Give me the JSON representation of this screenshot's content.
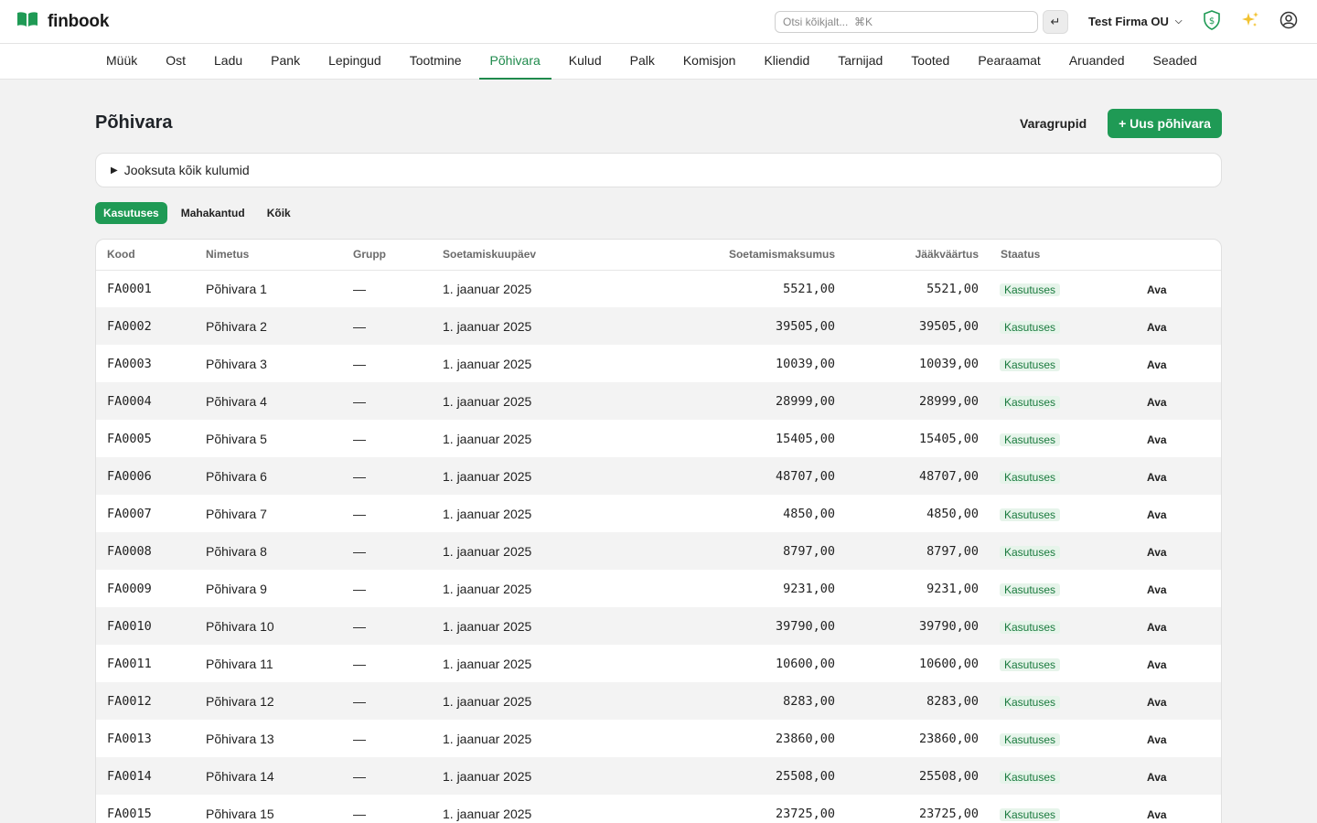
{
  "app": {
    "name": "finbook"
  },
  "search": {
    "placeholder": "Otsi kõikjalt...  ⌘K",
    "enter_glyph": "↵"
  },
  "company": {
    "name": "Test Firma OU"
  },
  "nav": {
    "items": [
      "Müük",
      "Ost",
      "Ladu",
      "Pank",
      "Lepingud",
      "Tootmine",
      "Põhivara",
      "Kulud",
      "Palk",
      "Komisjon",
      "Kliendid",
      "Tarnijad",
      "Tooted",
      "Pearaamat",
      "Aruanded",
      "Seaded"
    ],
    "active": "Põhivara"
  },
  "page": {
    "title": "Põhivara",
    "varagrupid_label": "Varagrupid",
    "new_label": "+ Uus põhivara",
    "run_all_label": "Jooksuta kõik kulumid"
  },
  "filters": {
    "items": [
      "Kasutuses",
      "Mahakantud",
      "Kõik"
    ],
    "active": "Kasutuses"
  },
  "table": {
    "headers": [
      "Kood",
      "Nimetus",
      "Grupp",
      "Soetamiskuupäev",
      "Soetamismaksumus",
      "Jääkväärtus",
      "Staatus"
    ],
    "open_label": "Ava",
    "rows": [
      {
        "code": "FA0001",
        "name": "Põhivara 1",
        "group": "—",
        "date": "1. jaanuar 2025",
        "cost": "5521,00",
        "residual": "5521,00",
        "status": "Kasutuses"
      },
      {
        "code": "FA0002",
        "name": "Põhivara 2",
        "group": "—",
        "date": "1. jaanuar 2025",
        "cost": "39505,00",
        "residual": "39505,00",
        "status": "Kasutuses"
      },
      {
        "code": "FA0003",
        "name": "Põhivara 3",
        "group": "—",
        "date": "1. jaanuar 2025",
        "cost": "10039,00",
        "residual": "10039,00",
        "status": "Kasutuses"
      },
      {
        "code": "FA0004",
        "name": "Põhivara 4",
        "group": "—",
        "date": "1. jaanuar 2025",
        "cost": "28999,00",
        "residual": "28999,00",
        "status": "Kasutuses"
      },
      {
        "code": "FA0005",
        "name": "Põhivara 5",
        "group": "—",
        "date": "1. jaanuar 2025",
        "cost": "15405,00",
        "residual": "15405,00",
        "status": "Kasutuses"
      },
      {
        "code": "FA0006",
        "name": "Põhivara 6",
        "group": "—",
        "date": "1. jaanuar 2025",
        "cost": "48707,00",
        "residual": "48707,00",
        "status": "Kasutuses"
      },
      {
        "code": "FA0007",
        "name": "Põhivara 7",
        "group": "—",
        "date": "1. jaanuar 2025",
        "cost": "4850,00",
        "residual": "4850,00",
        "status": "Kasutuses"
      },
      {
        "code": "FA0008",
        "name": "Põhivara 8",
        "group": "—",
        "date": "1. jaanuar 2025",
        "cost": "8797,00",
        "residual": "8797,00",
        "status": "Kasutuses"
      },
      {
        "code": "FA0009",
        "name": "Põhivara 9",
        "group": "—",
        "date": "1. jaanuar 2025",
        "cost": "9231,00",
        "residual": "9231,00",
        "status": "Kasutuses"
      },
      {
        "code": "FA0010",
        "name": "Põhivara 10",
        "group": "—",
        "date": "1. jaanuar 2025",
        "cost": "39790,00",
        "residual": "39790,00",
        "status": "Kasutuses"
      },
      {
        "code": "FA0011",
        "name": "Põhivara 11",
        "group": "—",
        "date": "1. jaanuar 2025",
        "cost": "10600,00",
        "residual": "10600,00",
        "status": "Kasutuses"
      },
      {
        "code": "FA0012",
        "name": "Põhivara 12",
        "group": "—",
        "date": "1. jaanuar 2025",
        "cost": "8283,00",
        "residual": "8283,00",
        "status": "Kasutuses"
      },
      {
        "code": "FA0013",
        "name": "Põhivara 13",
        "group": "—",
        "date": "1. jaanuar 2025",
        "cost": "23860,00",
        "residual": "23860,00",
        "status": "Kasutuses"
      },
      {
        "code": "FA0014",
        "name": "Põhivara 14",
        "group": "—",
        "date": "1. jaanuar 2025",
        "cost": "25508,00",
        "residual": "25508,00",
        "status": "Kasutuses"
      },
      {
        "code": "FA0015",
        "name": "Põhivara 15",
        "group": "—",
        "date": "1. jaanuar 2025",
        "cost": "23725,00",
        "residual": "23725,00",
        "status": "Kasutuses"
      }
    ]
  },
  "icons": {
    "logo": "open-book-icon",
    "shield": "shield-dollar-icon",
    "ai": "sparkles-icon",
    "user": "user-circle-icon"
  },
  "colors": {
    "accent": "#1f9a55",
    "badge_bg": "#e6f4ea",
    "badge_text": "#1a7a3e"
  }
}
